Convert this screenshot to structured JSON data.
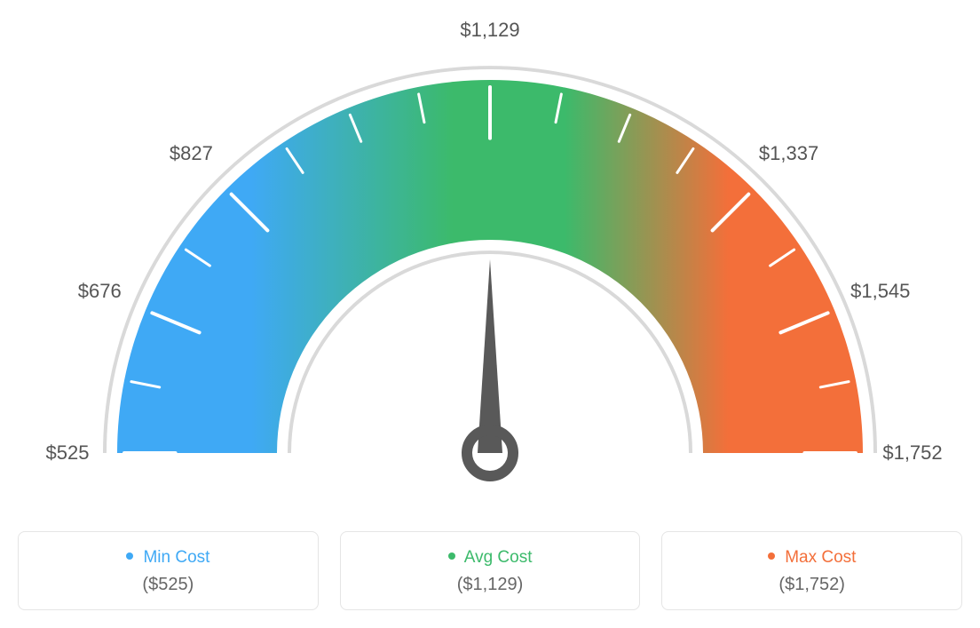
{
  "gauge": {
    "type": "gauge",
    "min_value": 525,
    "max_value": 1752,
    "avg_value": 1129,
    "needle_value": 1129,
    "tick_labels": [
      "$525",
      "$676",
      "$827",
      "$1,129",
      "$1,337",
      "$1,545",
      "$1,752"
    ],
    "tick_angles_deg": [
      -90,
      -67.5,
      -45,
      0,
      45,
      67.5,
      90
    ],
    "minor_tick_count": 17,
    "outer_radius": 420,
    "inner_radius": 240,
    "track_gap": 12,
    "track_width": 4,
    "colors": {
      "min": "#3fa9f5",
      "avg": "#3cba6b",
      "max": "#f36f3a",
      "track": "#d9d9d9",
      "tick": "#ffffff",
      "needle": "#595959",
      "label": "#555555",
      "background": "#ffffff"
    },
    "label_fontsize": 22
  },
  "legend": {
    "min": {
      "title": "Min Cost",
      "value": "($525)",
      "color": "#3fa9f5"
    },
    "avg": {
      "title": "Avg Cost",
      "value": "($1,129)",
      "color": "#3cba6b"
    },
    "max": {
      "title": "Max Cost",
      "value": "($1,752)",
      "color": "#f36f3a"
    }
  }
}
